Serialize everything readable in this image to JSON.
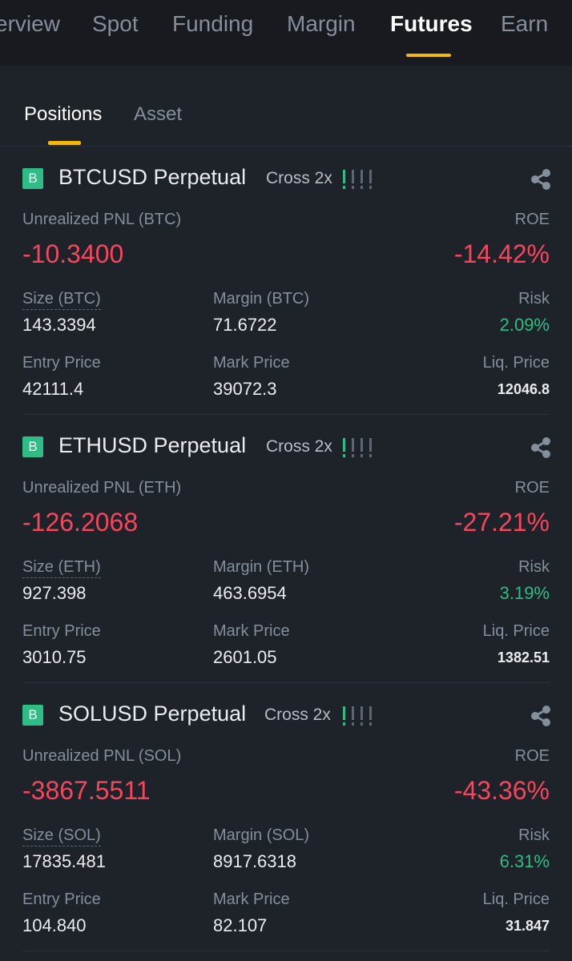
{
  "nav": {
    "tabs": [
      "erview",
      "Spot",
      "Funding",
      "Margin",
      "Futures",
      "Earn"
    ],
    "active": "Futures"
  },
  "subtabs": {
    "positions": "Positions",
    "asset": "Asset"
  },
  "colors": {
    "accent": "#f0b90b",
    "loss": "#f6465d",
    "gain": "#2ebd85",
    "background": "#1e2329"
  },
  "positions": [
    {
      "side": "B",
      "symbol": "BTCUSD Perpetual",
      "mode": "Cross 2x",
      "pnl_label": "Unrealized PNL (BTC)",
      "pnl": "-10.3400",
      "roe_label": "ROE",
      "roe": "-14.42%",
      "size_label": "Size (BTC)",
      "size": "143.3394",
      "margin_label": "Margin (BTC)",
      "margin": "71.6722",
      "risk_label": "Risk",
      "risk": "2.09%",
      "entry_label": "Entry Price",
      "entry": "42111.4",
      "mark_label": "Mark Price",
      "mark": "39072.3",
      "liq_label": "Liq. Price",
      "liq": "12046.8"
    },
    {
      "side": "B",
      "symbol": "ETHUSD Perpetual",
      "mode": "Cross 2x",
      "pnl_label": "Unrealized PNL (ETH)",
      "pnl": "-126.2068",
      "roe_label": "ROE",
      "roe": "-27.21%",
      "size_label": "Size (ETH)",
      "size": "927.398",
      "margin_label": "Margin (ETH)",
      "margin": "463.6954",
      "risk_label": "Risk",
      "risk": "3.19%",
      "entry_label": "Entry Price",
      "entry": "3010.75",
      "mark_label": "Mark Price",
      "mark": "2601.05",
      "liq_label": "Liq. Price",
      "liq": "1382.51"
    },
    {
      "side": "B",
      "symbol": "SOLUSD Perpetual",
      "mode": "Cross 2x",
      "pnl_label": "Unrealized PNL (SOL)",
      "pnl": "-3867.5511",
      "roe_label": "ROE",
      "roe": "-43.36%",
      "size_label": "Size (SOL)",
      "size": "17835.481",
      "margin_label": "Margin (SOL)",
      "margin": "8917.6318",
      "risk_label": "Risk",
      "risk": "6.31%",
      "entry_label": "Entry Price",
      "entry": "104.840",
      "mark_label": "Mark Price",
      "mark": "82.107",
      "liq_label": "Liq. Price",
      "liq": "31.847"
    }
  ]
}
